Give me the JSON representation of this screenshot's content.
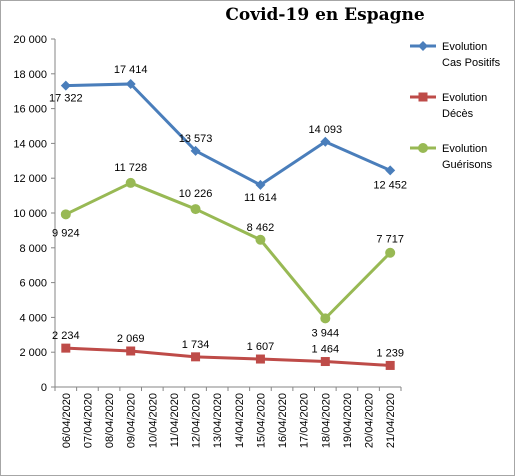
{
  "chart_data": {
    "type": "line",
    "title": "Covid-19 en Espagne",
    "xlabel": "",
    "ylabel": "",
    "ylim": [
      0,
      20000
    ],
    "yticks": [
      0,
      2000,
      4000,
      6000,
      8000,
      10000,
      12000,
      14000,
      16000,
      18000,
      20000
    ],
    "ytick_labels": [
      "0",
      "2 000",
      "4 000",
      "6 000",
      "8 000",
      "10 000",
      "12 000",
      "14 000",
      "16 000",
      "18 000",
      "20 000"
    ],
    "categories": [
      "06/04/2020",
      "07/04/2020",
      "08/04/2020",
      "09/04/2020",
      "10/04/2020",
      "11/04/2020",
      "12/04/2020",
      "13/04/2020",
      "14/04/2020",
      "15/04/2020",
      "16/04/2020",
      "17/04/2020",
      "18/04/2020",
      "19/04/2020",
      "20/04/2020",
      "21/04/2020"
    ],
    "grid": false,
    "legend_position": "right",
    "series": [
      {
        "name": "Evolution Cas Positifs",
        "legend_lines": [
          "Evolution",
          "Cas Positifs"
        ],
        "color": "#4a7ebb",
        "marker": "diamond",
        "points": [
          {
            "x": "06/04/2020",
            "y": 17322,
            "label": "17 322"
          },
          {
            "x": "09/04/2020",
            "y": 17414,
            "label": "17 414"
          },
          {
            "x": "12/04/2020",
            "y": 13573,
            "label": "13 573"
          },
          {
            "x": "15/04/2020",
            "y": 11614,
            "label": "11 614"
          },
          {
            "x": "18/04/2020",
            "y": 14093,
            "label": "14 093"
          },
          {
            "x": "21/04/2020",
            "y": 12452,
            "label": "12 452"
          }
        ]
      },
      {
        "name": "Evolution Décès",
        "legend_lines": [
          "Evolution",
          "Décès"
        ],
        "color": "#be4b48",
        "marker": "square",
        "points": [
          {
            "x": "06/04/2020",
            "y": 2234,
            "label": "2 234"
          },
          {
            "x": "09/04/2020",
            "y": 2069,
            "label": "2 069"
          },
          {
            "x": "12/04/2020",
            "y": 1734,
            "label": "1 734"
          },
          {
            "x": "15/04/2020",
            "y": 1607,
            "label": "1 607"
          },
          {
            "x": "18/04/2020",
            "y": 1464,
            "label": "1 464"
          },
          {
            "x": "21/04/2020",
            "y": 1239,
            "label": "1 239"
          }
        ]
      },
      {
        "name": "Evolution Guérisons",
        "legend_lines": [
          "Evolution",
          "Guérisons"
        ],
        "color": "#98b954",
        "marker": "circle",
        "points": [
          {
            "x": "06/04/2020",
            "y": 9924,
            "label": "9 924"
          },
          {
            "x": "09/04/2020",
            "y": 11728,
            "label": "11 728"
          },
          {
            "x": "12/04/2020",
            "y": 10226,
            "label": "10 226"
          },
          {
            "x": "15/04/2020",
            "y": 8462,
            "label": "8 462"
          },
          {
            "x": "18/04/2020",
            "y": 3944,
            "label": "3 944"
          },
          {
            "x": "21/04/2020",
            "y": 7717,
            "label": "7 717"
          }
        ]
      }
    ]
  }
}
